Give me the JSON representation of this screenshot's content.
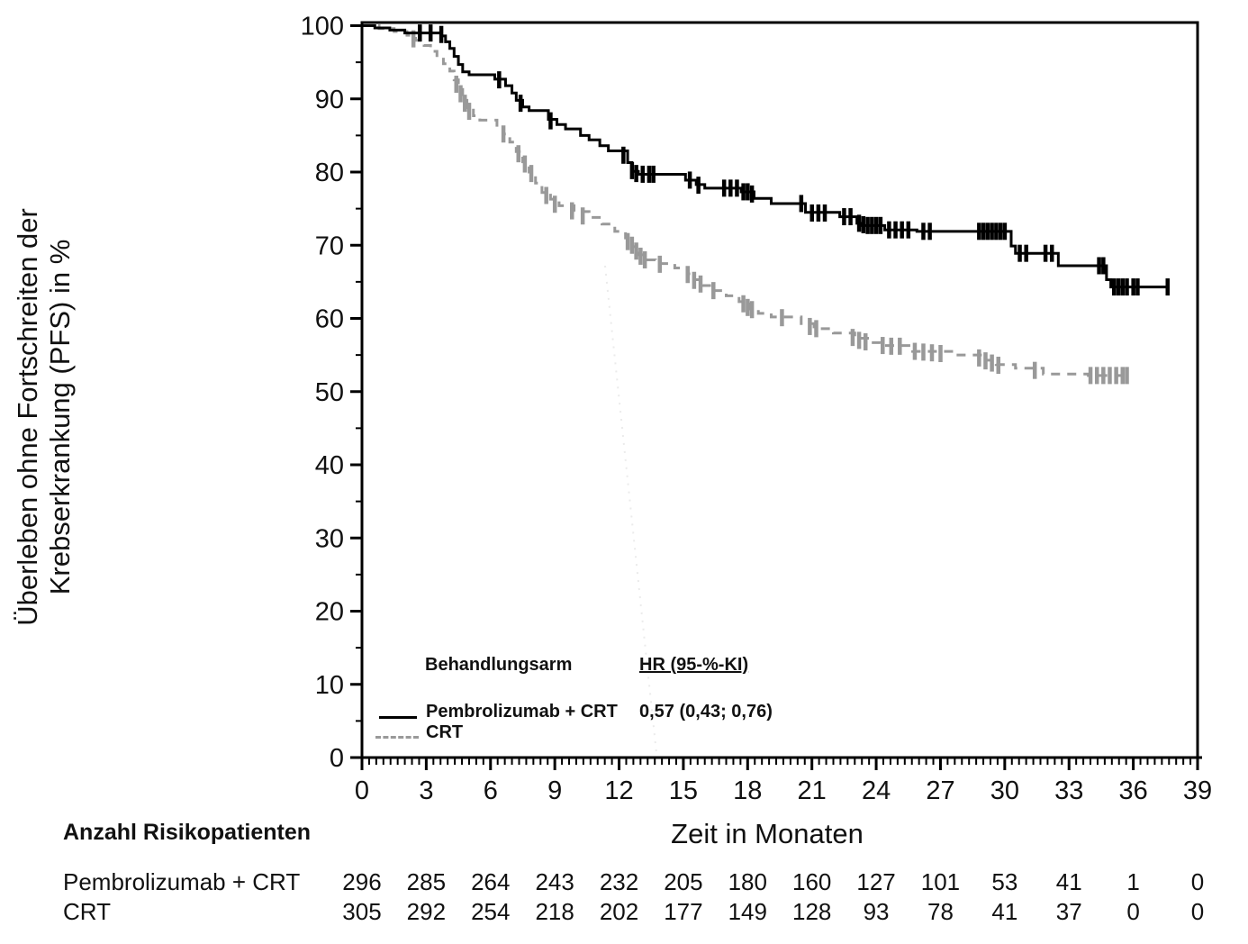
{
  "figure": {
    "y_axis_label_line1": "Überleben ohne Fortschreiten der",
    "y_axis_label_line2": "Krebserkrankung (PFS) in %",
    "x_axis_label": "Zeit in Monaten"
  },
  "legend": {
    "column_arm": "Behandlungsarm",
    "column_hr": "HR (95-%-KI)",
    "rows": [
      {
        "label": "Pembrolizumab + CRT",
        "hr": "0,57 (0,43; 0,76)",
        "style": "solid",
        "color": "#000000"
      },
      {
        "label": "CRT",
        "hr": "",
        "style": "dashed",
        "color": "#999999"
      }
    ]
  },
  "risk_table": {
    "title": "Anzahl Risikopatienten",
    "months": [
      0,
      3,
      6,
      9,
      12,
      15,
      18,
      21,
      24,
      27,
      30,
      33,
      36,
      39
    ],
    "rows": [
      {
        "label": "Pembrolizumab + CRT",
        "values": [
          296,
          285,
          264,
          243,
          232,
          205,
          180,
          160,
          127,
          101,
          53,
          41,
          1,
          0
        ]
      },
      {
        "label": "CRT",
        "values": [
          305,
          292,
          254,
          218,
          202,
          177,
          149,
          128,
          93,
          78,
          41,
          37,
          0,
          0
        ]
      }
    ]
  },
  "chart_data": {
    "type": "line",
    "subtype": "kaplan-meier-step",
    "title": "",
    "xlabel": "Zeit in Monaten",
    "ylabel": "Überleben ohne Fortschreiten der Krebserkrankung (PFS) in %",
    "xlim": [
      0,
      39
    ],
    "ylim": [
      0,
      100
    ],
    "xticks": [
      0,
      3,
      6,
      9,
      12,
      15,
      18,
      21,
      24,
      27,
      30,
      33,
      36,
      39
    ],
    "yticks": [
      0,
      10,
      20,
      30,
      40,
      50,
      60,
      70,
      80,
      90,
      100
    ],
    "x_minor_step": 0.3333,
    "y_minor_step": 5,
    "grid": false,
    "legend_position": "inside-lower-left",
    "hr_annotation": "0,57 (0,43; 0,76)",
    "series": [
      {
        "name": "Pembrolizumab + CRT",
        "color": "#000000",
        "line": "solid",
        "end_month": 37.6,
        "steps": [
          [
            0,
            100
          ],
          [
            0.6,
            99.7
          ],
          [
            1.3,
            99.4
          ],
          [
            2.0,
            99.0
          ],
          [
            3.7,
            98.6
          ],
          [
            3.9,
            97.8
          ],
          [
            4.1,
            96.9
          ],
          [
            4.3,
            95.8
          ],
          [
            4.5,
            94.7
          ],
          [
            4.7,
            93.7
          ],
          [
            5.0,
            93.3
          ],
          [
            6.2,
            92.7
          ],
          [
            6.7,
            91.8
          ],
          [
            7.0,
            90.8
          ],
          [
            7.2,
            89.8
          ],
          [
            7.5,
            88.9
          ],
          [
            7.8,
            88.4
          ],
          [
            8.7,
            87.2
          ],
          [
            9.1,
            86.5
          ],
          [
            9.5,
            85.9
          ],
          [
            10.2,
            85.0
          ],
          [
            10.6,
            84.4
          ],
          [
            11.1,
            83.6
          ],
          [
            11.5,
            82.9
          ],
          [
            12.4,
            81.3
          ],
          [
            12.6,
            80.1
          ],
          [
            12.9,
            79.7
          ],
          [
            15.1,
            78.9
          ],
          [
            15.6,
            78.3
          ],
          [
            16.0,
            77.8
          ],
          [
            17.7,
            77.3
          ],
          [
            18.3,
            76.4
          ],
          [
            19.1,
            75.7
          ],
          [
            20.7,
            74.5
          ],
          [
            22.3,
            73.9
          ],
          [
            23.1,
            73.0
          ],
          [
            23.3,
            72.7
          ],
          [
            24.4,
            72.1
          ],
          [
            25.9,
            71.9
          ],
          [
            30.3,
            69.9
          ],
          [
            30.5,
            68.9
          ],
          [
            32.5,
            67.2
          ],
          [
            34.75,
            65.3
          ],
          [
            34.95,
            64.3
          ]
        ],
        "censor_marks": [
          [
            2.7,
            99.0
          ],
          [
            3.2,
            99.0
          ],
          [
            3.7,
            98.8
          ],
          [
            6.4,
            92.6
          ],
          [
            7.4,
            89.4
          ],
          [
            8.8,
            87.0
          ],
          [
            12.2,
            82.3
          ],
          [
            12.6,
            80.2
          ],
          [
            12.8,
            79.8
          ],
          [
            13.1,
            79.7
          ],
          [
            13.4,
            79.7
          ],
          [
            13.6,
            79.7
          ],
          [
            15.3,
            78.9
          ],
          [
            15.7,
            78.2
          ],
          [
            16.9,
            77.8
          ],
          [
            17.2,
            77.8
          ],
          [
            17.5,
            77.8
          ],
          [
            17.8,
            77.3
          ],
          [
            18.0,
            77.3
          ],
          [
            18.2,
            77.0
          ],
          [
            20.5,
            75.7
          ],
          [
            21.0,
            74.4
          ],
          [
            21.3,
            74.4
          ],
          [
            21.6,
            74.4
          ],
          [
            22.5,
            73.9
          ],
          [
            22.8,
            73.9
          ],
          [
            23.2,
            73.0
          ],
          [
            23.4,
            72.8
          ],
          [
            23.6,
            72.7
          ],
          [
            23.8,
            72.7
          ],
          [
            24.0,
            72.7
          ],
          [
            24.2,
            72.7
          ],
          [
            24.6,
            72.1
          ],
          [
            24.9,
            72.1
          ],
          [
            25.2,
            72.1
          ],
          [
            25.5,
            72.1
          ],
          [
            26.2,
            71.9
          ],
          [
            26.5,
            71.9
          ],
          [
            28.8,
            71.9
          ],
          [
            29.0,
            71.9
          ],
          [
            29.2,
            71.9
          ],
          [
            29.4,
            71.9
          ],
          [
            29.6,
            71.9
          ],
          [
            29.8,
            71.9
          ],
          [
            30.0,
            71.9
          ],
          [
            30.7,
            68.9
          ],
          [
            31.0,
            68.9
          ],
          [
            31.9,
            68.9
          ],
          [
            32.2,
            68.9
          ],
          [
            34.4,
            67.2
          ],
          [
            34.6,
            67.2
          ],
          [
            35.1,
            64.3
          ],
          [
            35.3,
            64.3
          ],
          [
            35.5,
            64.3
          ],
          [
            35.7,
            64.3
          ],
          [
            36.0,
            64.3
          ],
          [
            36.2,
            64.3
          ],
          [
            37.6,
            64.3
          ]
        ]
      },
      {
        "name": "CRT",
        "color": "#999999",
        "line": "dashed",
        "end_month": 35.7,
        "steps": [
          [
            0,
            100
          ],
          [
            0.8,
            99.6
          ],
          [
            1.5,
            99.2
          ],
          [
            2.1,
            98.7
          ],
          [
            2.5,
            98.0
          ],
          [
            2.9,
            97.3
          ],
          [
            3.2,
            96.5
          ],
          [
            3.5,
            95.7
          ],
          [
            3.8,
            94.8
          ],
          [
            4.1,
            93.8
          ],
          [
            4.3,
            92.6
          ],
          [
            4.5,
            91.3
          ],
          [
            4.7,
            90.0
          ],
          [
            4.9,
            88.8
          ],
          [
            5.2,
            87.7
          ],
          [
            5.5,
            87.1
          ],
          [
            6.3,
            86.2
          ],
          [
            6.6,
            85.2
          ],
          [
            6.9,
            84.1
          ],
          [
            7.2,
            82.8
          ],
          [
            7.5,
            81.4
          ],
          [
            7.8,
            80.0
          ],
          [
            8.1,
            78.5
          ],
          [
            8.4,
            77.2
          ],
          [
            8.8,
            76.3
          ],
          [
            9.2,
            75.4
          ],
          [
            9.9,
            74.6
          ],
          [
            10.6,
            73.8
          ],
          [
            11.2,
            72.9
          ],
          [
            11.8,
            71.9
          ],
          [
            12.3,
            71.0
          ],
          [
            12.6,
            69.8
          ],
          [
            12.9,
            68.7
          ],
          [
            13.2,
            68.0
          ],
          [
            13.7,
            67.5
          ],
          [
            14.6,
            66.9
          ],
          [
            15.2,
            66.1
          ],
          [
            15.5,
            65.3
          ],
          [
            15.9,
            64.5
          ],
          [
            16.3,
            63.8
          ],
          [
            17.0,
            63.1
          ],
          [
            17.6,
            62.3
          ],
          [
            18.1,
            61.3
          ],
          [
            18.5,
            60.7
          ],
          [
            19.1,
            60.2
          ],
          [
            20.5,
            59.3
          ],
          [
            21.1,
            58.6
          ],
          [
            22.0,
            58.0
          ],
          [
            23.0,
            57.3
          ],
          [
            23.6,
            56.7
          ],
          [
            24.2,
            56.3
          ],
          [
            25.7,
            55.5
          ],
          [
            27.6,
            55.0
          ],
          [
            29.0,
            54.3
          ],
          [
            29.6,
            53.7
          ],
          [
            30.5,
            53.2
          ],
          [
            31.8,
            52.4
          ],
          [
            33.9,
            52.2
          ]
        ],
        "censor_marks": [
          [
            2.4,
            98.2
          ],
          [
            4.4,
            92.0
          ],
          [
            4.6,
            90.7
          ],
          [
            4.8,
            89.4
          ],
          [
            5.0,
            88.3
          ],
          [
            6.6,
            85.2
          ],
          [
            7.3,
            82.5
          ],
          [
            7.6,
            81.1
          ],
          [
            7.9,
            79.8
          ],
          [
            8.6,
            76.8
          ],
          [
            9.0,
            75.6
          ],
          [
            9.8,
            74.7
          ],
          [
            10.3,
            74.0
          ],
          [
            12.4,
            70.5
          ],
          [
            12.6,
            70.0
          ],
          [
            12.8,
            69.2
          ],
          [
            13.0,
            68.5
          ],
          [
            13.2,
            68.0
          ],
          [
            13.9,
            67.4
          ],
          [
            15.2,
            66.0
          ],
          [
            15.5,
            65.2
          ],
          [
            15.8,
            64.7
          ],
          [
            16.4,
            63.8
          ],
          [
            17.8,
            62.0
          ],
          [
            18.0,
            61.5
          ],
          [
            18.2,
            61.2
          ],
          [
            19.6,
            60.1
          ],
          [
            20.9,
            58.9
          ],
          [
            21.2,
            58.6
          ],
          [
            22.9,
            57.4
          ],
          [
            23.2,
            57.0
          ],
          [
            23.5,
            56.8
          ],
          [
            24.3,
            56.3
          ],
          [
            24.7,
            56.2
          ],
          [
            25.1,
            56.2
          ],
          [
            25.8,
            55.5
          ],
          [
            26.2,
            55.4
          ],
          [
            26.6,
            55.3
          ],
          [
            27.0,
            55.2
          ],
          [
            28.8,
            54.6
          ],
          [
            29.1,
            54.2
          ],
          [
            29.4,
            53.9
          ],
          [
            29.7,
            53.6
          ],
          [
            31.4,
            52.9
          ],
          [
            34.0,
            52.2
          ],
          [
            34.3,
            52.2
          ],
          [
            34.6,
            52.2
          ],
          [
            34.9,
            52.2
          ],
          [
            35.2,
            52.2
          ],
          [
            35.5,
            52.2
          ],
          [
            35.7,
            52.2
          ]
        ]
      }
    ]
  }
}
